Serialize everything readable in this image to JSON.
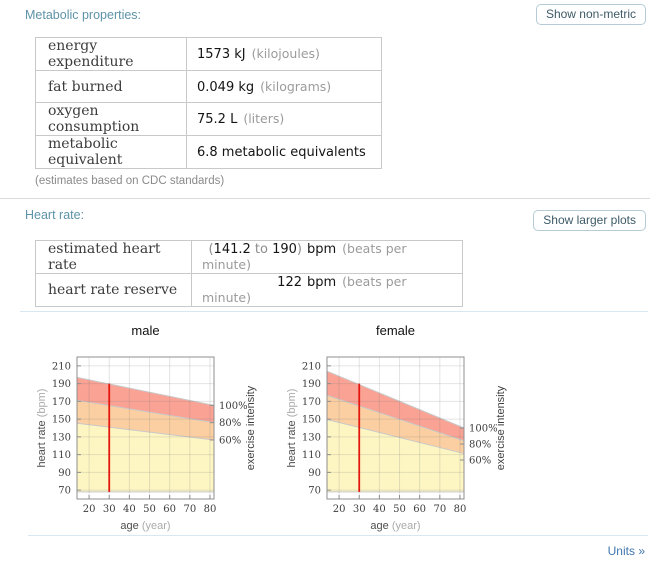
{
  "metabolic": {
    "heading": "Metabolic properties:",
    "button": "Show non-metric",
    "rows": [
      {
        "label": "energy expenditure",
        "value": "1573 kJ",
        "note": "(kilojoules)"
      },
      {
        "label": "fat burned",
        "value": "0.049 kg",
        "note": "(kilograms)"
      },
      {
        "label": "oxygen consumption",
        "value": "75.2 L",
        "note": "(liters)"
      },
      {
        "label": "metabolic equivalent",
        "value": "6.8 metabolic equivalents",
        "note": ""
      }
    ],
    "footnote": "(estimates based on CDC standards)"
  },
  "heart_rate": {
    "heading": "Heart rate:",
    "button": "Show larger plots",
    "rows": [
      {
        "label": "estimated heart rate",
        "open": "(",
        "low": "141.2",
        "to": " to ",
        "high": "190",
        "close": ")",
        "unit": "bpm",
        "note": "(beats per minute)"
      },
      {
        "label": "heart rate reserve",
        "value": "122",
        "unit": "bpm",
        "note": "(beats per minute)"
      }
    ]
  },
  "footer": {
    "units_link": "Units »"
  },
  "colors": {
    "heading_teal": "#5e93a8",
    "button_border": "#b5ccd8",
    "link_blue": "#4077ae",
    "band_red": "#faa294",
    "band_orange": "#fbcfa2",
    "band_yellow": "#fdf6c3",
    "marker_red": "#e3170d"
  },
  "chart_data": [
    {
      "type": "area",
      "title": "male",
      "xlabel": "age",
      "xlabel_unit": "(year)",
      "ylabel": "heart rate",
      "ylabel_unit": "(bpm)",
      "right_axis_label": "exercise intensity",
      "x_range": [
        14,
        82
      ],
      "y_range": [
        60,
        220
      ],
      "x_ticks": [
        20,
        30,
        40,
        50,
        60,
        70,
        80
      ],
      "y_ticks": [
        70,
        90,
        110,
        130,
        150,
        170,
        190,
        210
      ],
      "grid": true,
      "bands": [
        {
          "label": "100%",
          "color": "#faa294",
          "x": [
            14,
            82
          ],
          "upper": [
            197,
            165.5
          ],
          "lower": [
            171.2,
            146
          ]
        },
        {
          "label": "80%",
          "color": "#fbcfa2",
          "x": [
            14,
            82
          ],
          "upper": [
            171.2,
            146
          ],
          "lower": [
            145.4,
            126.5
          ]
        },
        {
          "label": "60%",
          "color": "#fdf6c3",
          "x": [
            14,
            82
          ],
          "upper": [
            145.4,
            126.5
          ],
          "lower": [
            68,
            68
          ]
        }
      ],
      "marker_line": {
        "x": 30,
        "y_from": 68,
        "y_to": 190,
        "color": "#e3170d"
      }
    },
    {
      "type": "area",
      "title": "female",
      "xlabel": "age",
      "xlabel_unit": "(year)",
      "ylabel": "heart rate",
      "ylabel_unit": "(bpm)",
      "right_axis_label": "exercise intensity",
      "x_range": [
        14,
        82
      ],
      "y_range": [
        60,
        220
      ],
      "x_ticks": [
        20,
        30,
        40,
        50,
        60,
        70,
        80
      ],
      "y_ticks": [
        70,
        90,
        110,
        130,
        150,
        170,
        190,
        210
      ],
      "grid": true,
      "bands": [
        {
          "label": "100%",
          "color": "#faa294",
          "x": [
            14,
            82
          ],
          "upper": [
            204,
            140
          ],
          "lower": [
            176.8,
            125.6
          ]
        },
        {
          "label": "80%",
          "color": "#fbcfa2",
          "x": [
            14,
            82
          ],
          "upper": [
            176.8,
            125.6
          ],
          "lower": [
            149.6,
            111.2
          ]
        },
        {
          "label": "60%",
          "color": "#fdf6c3",
          "x": [
            14,
            82
          ],
          "upper": [
            149.6,
            111.2
          ],
          "lower": [
            68,
            68
          ]
        }
      ],
      "marker_line": {
        "x": 30,
        "y_from": 68,
        "y_to": 190,
        "color": "#e3170d"
      }
    }
  ]
}
